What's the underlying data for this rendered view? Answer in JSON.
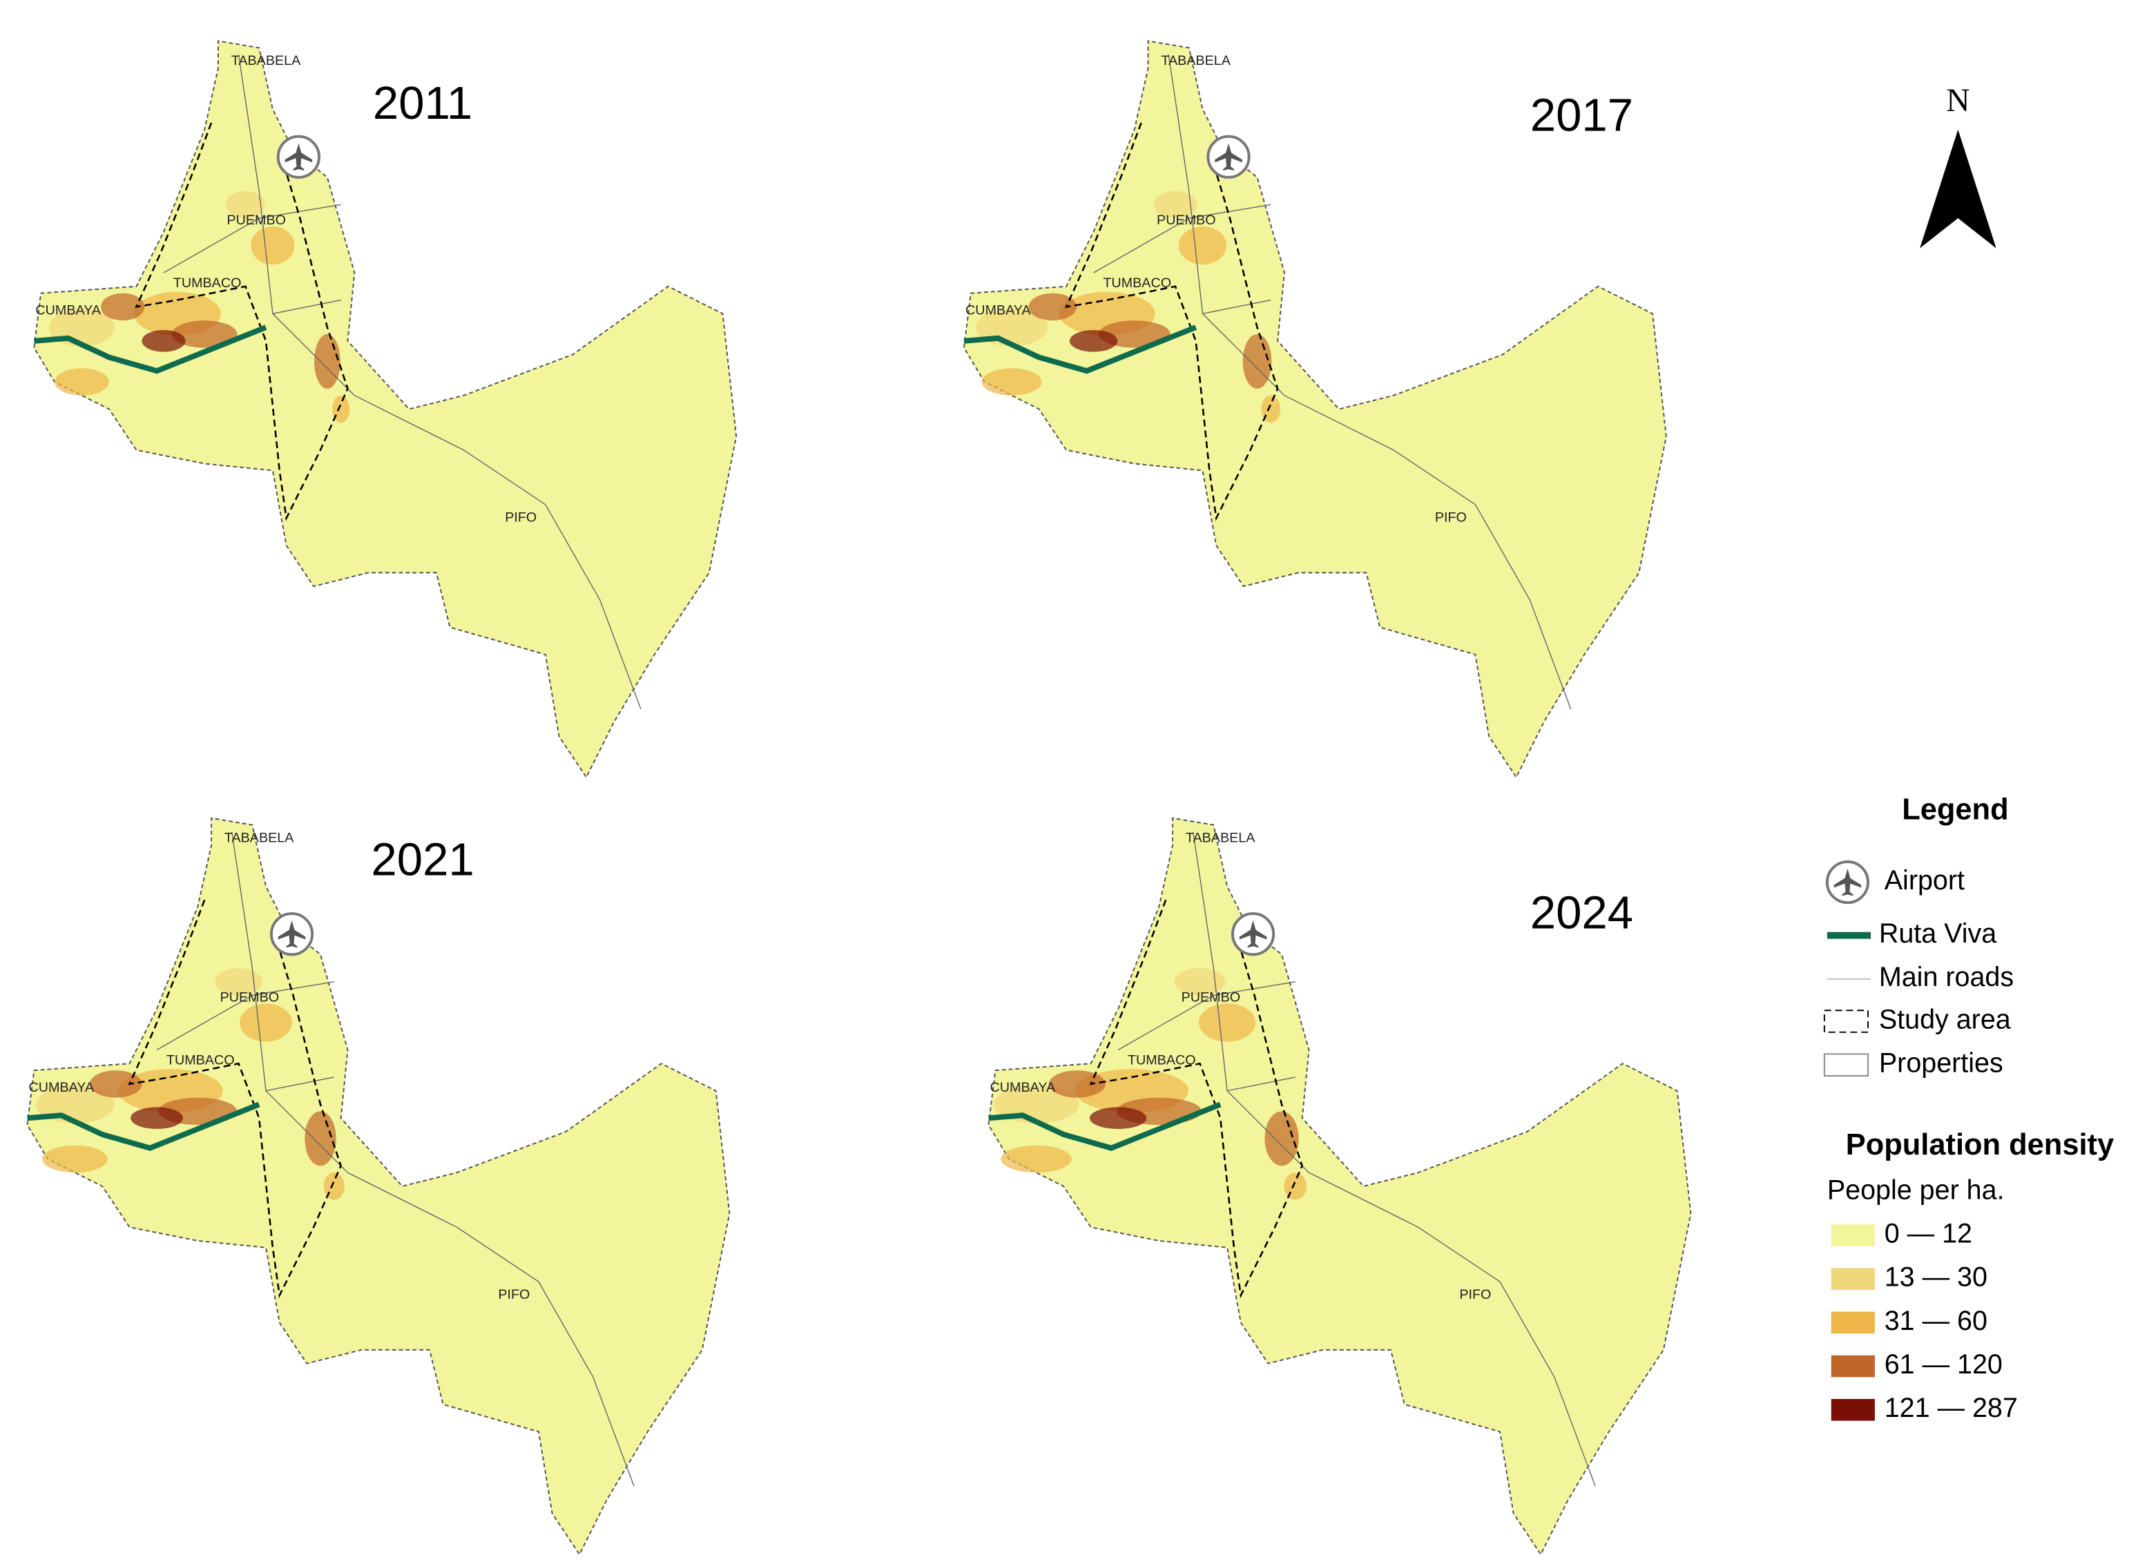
{
  "maps": [
    {
      "year": "2011",
      "places": [
        "TABABELA",
        "PUEMBO",
        "TUMBACO",
        "CUMBAYA",
        "PIFO"
      ]
    },
    {
      "year": "2017",
      "places": [
        "TABABELA",
        "PUEMBO",
        "TUMBACO",
        "CUMBAYA",
        "PIFO"
      ]
    },
    {
      "year": "2021",
      "places": [
        "TABABELA",
        "PUEMBO",
        "TUMBACO",
        "CUMBAYA",
        "PIFO"
      ]
    },
    {
      "year": "2024",
      "places": [
        "TABABELA",
        "PUEMBO",
        "TUMBACO",
        "CUMBAYA",
        "PIFO"
      ]
    }
  ],
  "north": "N",
  "legend": {
    "title": "Legend",
    "items": [
      "Airport",
      "Ruta Viva",
      "Main roads",
      "Study area",
      "Properties"
    ],
    "density": {
      "title": "Population density",
      "subtitle": "People per ha.",
      "classes": [
        {
          "label": "0 — 12",
          "color": "#f3f59c"
        },
        {
          "label": "13 — 30",
          "color": "#f0d77a"
        },
        {
          "label": "31 — 60",
          "color": "#efb64a"
        },
        {
          "label": "61 — 120",
          "color": "#c0662a"
        },
        {
          "label": "121 — 287",
          "color": "#7a0f05"
        }
      ]
    }
  }
}
